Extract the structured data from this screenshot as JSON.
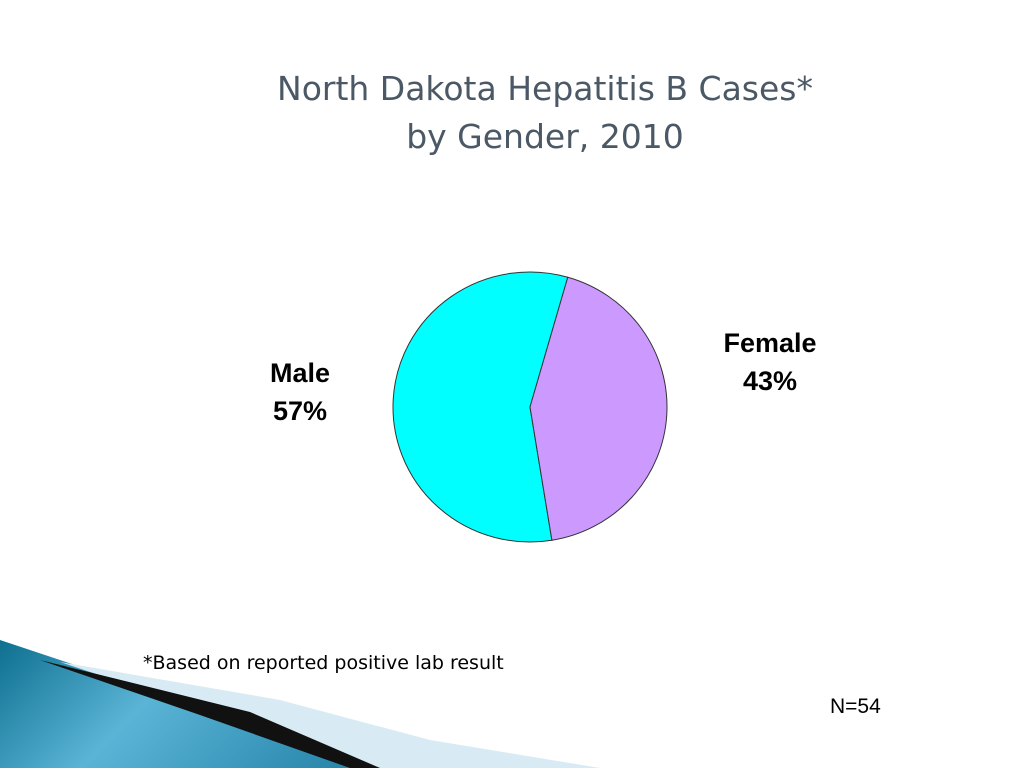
{
  "chart_data": {
    "type": "pie",
    "title": [
      "North Dakota Hepatitis B Cases*",
      "by Gender, 2010"
    ],
    "categories": [
      "Male",
      "Female"
    ],
    "values": [
      57,
      43
    ],
    "value_labels": [
      "57%",
      "43%"
    ],
    "colors": [
      "#00ffff",
      "#cc99ff"
    ],
    "footnote": "*Based on reported positive lab result",
    "note": "N=54"
  }
}
